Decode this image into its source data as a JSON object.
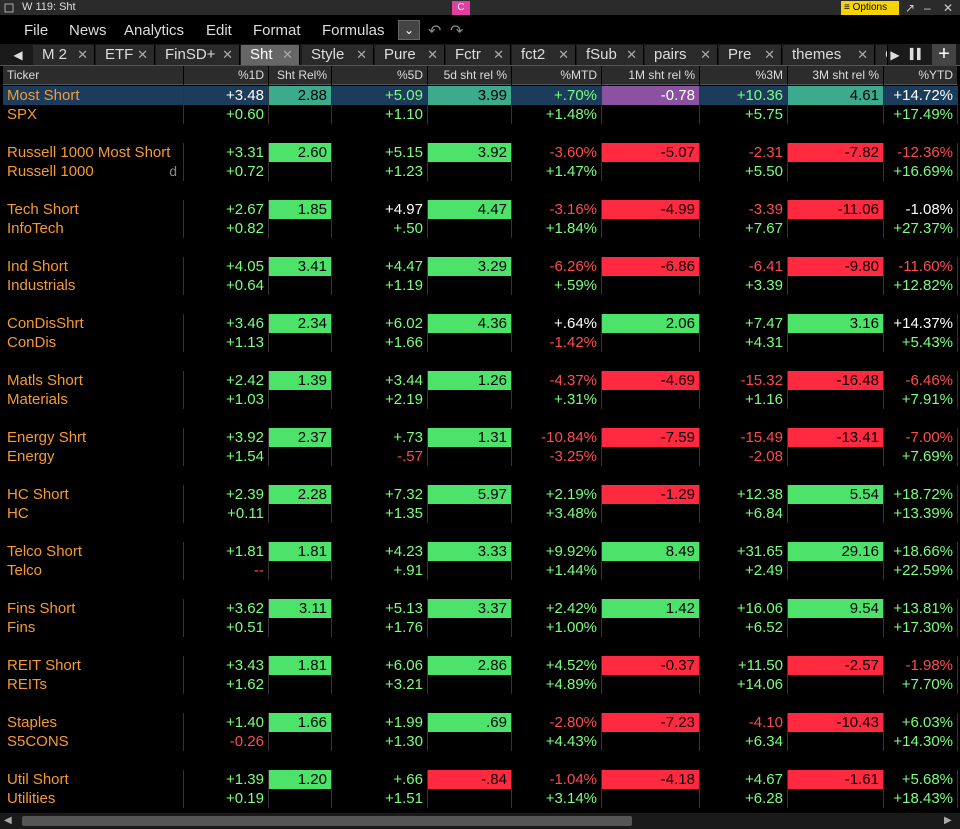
{
  "window": {
    "title": "W 119: Sht",
    "badge": "C",
    "options": "≡ Options"
  },
  "menu": [
    "File",
    "News",
    "Analytics",
    "Edit",
    "Format",
    "Formulas"
  ],
  "tabs": [
    "M 2",
    "ETF",
    "FinSD+",
    "Sht",
    "Style",
    "Pure",
    "Fctr",
    "fct2",
    "fSub",
    "pairs",
    "Pre",
    "themes",
    "C"
  ],
  "active_tab": "Sht",
  "columns": [
    "Ticker",
    "%1D",
    "Sht Rel%",
    "%5D",
    "5d sht rel %",
    "%MTD",
    "1M sht rel %",
    "%3M",
    "3M sht rel %",
    "%YTD"
  ],
  "groups": [
    [
      {
        "name": "Most Short",
        "c": [
          "+3.48",
          "2.88",
          "+5.09",
          "3.99",
          "+.70%",
          "-0.78",
          "+10.36",
          "4.61",
          "+14.72%"
        ]
      },
      {
        "name": "SPX",
        "c": [
          "+0.60",
          "",
          "+1.10",
          "",
          "+1.48%",
          "",
          "+5.75",
          "",
          "+17.49%"
        ]
      }
    ],
    [
      {
        "name": "Russell 1000 Most Short",
        "c": [
          "+3.31",
          "2.60",
          "+5.15",
          "3.92",
          "-3.60%",
          "-5.07",
          "-2.31",
          "-7.82",
          "-12.36%"
        ]
      },
      {
        "name": "Russell 1000",
        "mark": "d",
        "c": [
          "+0.72",
          "",
          "+1.23",
          "",
          "+1.47%",
          "",
          "+5.50",
          "",
          "+16.69%"
        ]
      }
    ],
    [
      {
        "name": "Tech Short",
        "c": [
          "+2.67",
          "1.85",
          "+4.97",
          "4.47",
          "-3.16%",
          "-4.99",
          "-3.39",
          "-11.06",
          "-1.08%"
        ]
      },
      {
        "name": "InfoTech",
        "c": [
          "+0.82",
          "",
          "+.50",
          "",
          "+1.84%",
          "",
          "+7.67",
          "",
          "+27.37%"
        ]
      }
    ],
    [
      {
        "name": "Ind Short",
        "c": [
          "+4.05",
          "3.41",
          "+4.47",
          "3.29",
          "-6.26%",
          "-6.86",
          "-6.41",
          "-9.80",
          "-11.60%"
        ]
      },
      {
        "name": "Industrials",
        "c": [
          "+0.64",
          "",
          "+1.19",
          "",
          "+.59%",
          "",
          "+3.39",
          "",
          "+12.82%"
        ]
      }
    ],
    [
      {
        "name": "ConDisShrt",
        "c": [
          "+3.46",
          "2.34",
          "+6.02",
          "4.36",
          "+.64%",
          "2.06",
          "+7.47",
          "3.16",
          "+14.37%"
        ]
      },
      {
        "name": "ConDis",
        "c": [
          "+1.13",
          "",
          "+1.66",
          "",
          "-1.42%",
          "",
          "+4.31",
          "",
          "+5.43%"
        ]
      }
    ],
    [
      {
        "name": "Matls Short",
        "c": [
          "+2.42",
          "1.39",
          "+3.44",
          "1.26",
          "-4.37%",
          "-4.69",
          "-15.32",
          "-16.48",
          "-6.46%"
        ]
      },
      {
        "name": "Materials",
        "c": [
          "+1.03",
          "",
          "+2.19",
          "",
          "+.31%",
          "",
          "+1.16",
          "",
          "+7.91%"
        ]
      }
    ],
    [
      {
        "name": "Energy Shrt",
        "c": [
          "+3.92",
          "2.37",
          "+.73",
          "1.31",
          "-10.84%",
          "-7.59",
          "-15.49",
          "-13.41",
          "-7.00%"
        ]
      },
      {
        "name": "Energy",
        "c": [
          "+1.54",
          "",
          "-.57",
          "",
          "-3.25%",
          "",
          "-2.08",
          "",
          "+7.69%"
        ]
      }
    ],
    [
      {
        "name": "HC Short",
        "c": [
          "+2.39",
          "2.28",
          "+7.32",
          "5.97",
          "+2.19%",
          "-1.29",
          "+12.38",
          "5.54",
          "+18.72%"
        ]
      },
      {
        "name": "HC",
        "c": [
          "+0.11",
          "",
          "+1.35",
          "",
          "+3.48%",
          "",
          "+6.84",
          "",
          "+13.39%"
        ]
      }
    ],
    [
      {
        "name": "Telco Short",
        "c": [
          "+1.81",
          "1.81",
          "+4.23",
          "3.33",
          "+9.92%",
          "8.49",
          "+31.65",
          "29.16",
          "+18.66%"
        ]
      },
      {
        "name": "Telco",
        "c": [
          "--",
          "",
          "+.91",
          "",
          "+1.44%",
          "",
          "+2.49",
          "",
          "+22.59%"
        ]
      }
    ],
    [
      {
        "name": "Fins Short",
        "c": [
          "+3.62",
          "3.11",
          "+5.13",
          "3.37",
          "+2.42%",
          "1.42",
          "+16.06",
          "9.54",
          "+13.81%"
        ]
      },
      {
        "name": "Fins",
        "c": [
          "+0.51",
          "",
          "+1.76",
          "",
          "+1.00%",
          "",
          "+6.52",
          "",
          "+17.30%"
        ]
      }
    ],
    [
      {
        "name": "REIT Short",
        "c": [
          "+3.43",
          "1.81",
          "+6.06",
          "2.86",
          "+4.52%",
          "-0.37",
          "+11.50",
          "-2.57",
          "-1.98%"
        ]
      },
      {
        "name": "REITs",
        "c": [
          "+1.62",
          "",
          "+3.21",
          "",
          "+4.89%",
          "",
          "+14.06",
          "",
          "+7.70%"
        ]
      }
    ],
    [
      {
        "name": "Staples",
        "c": [
          "+1.40",
          "1.66",
          "+1.99",
          ".69",
          "-2.80%",
          "-7.23",
          "-4.10",
          "-10.43",
          "+6.03%"
        ]
      },
      {
        "name": "S5CONS",
        "c": [
          "-0.26",
          "",
          "+1.30",
          "",
          "+4.43%",
          "",
          "+6.34",
          "",
          "+14.30%"
        ]
      }
    ],
    [
      {
        "name": "Util Short",
        "c": [
          "+1.39",
          "1.20",
          "+.66",
          "-.84",
          "-1.04%",
          "-4.18",
          "+4.67",
          "-1.61",
          "+5.68%"
        ]
      },
      {
        "name": "Utilities",
        "c": [
          "+0.19",
          "",
          "+1.51",
          "",
          "+3.14%",
          "",
          "+6.28",
          "",
          "+18.43%"
        ]
      }
    ]
  ],
  "colors": {
    "positive": "#7cff7c",
    "negative": "#ff4d4d",
    "name": "#f79a32",
    "heat_green": "#4de36b",
    "heat_red": "#ff2940"
  }
}
